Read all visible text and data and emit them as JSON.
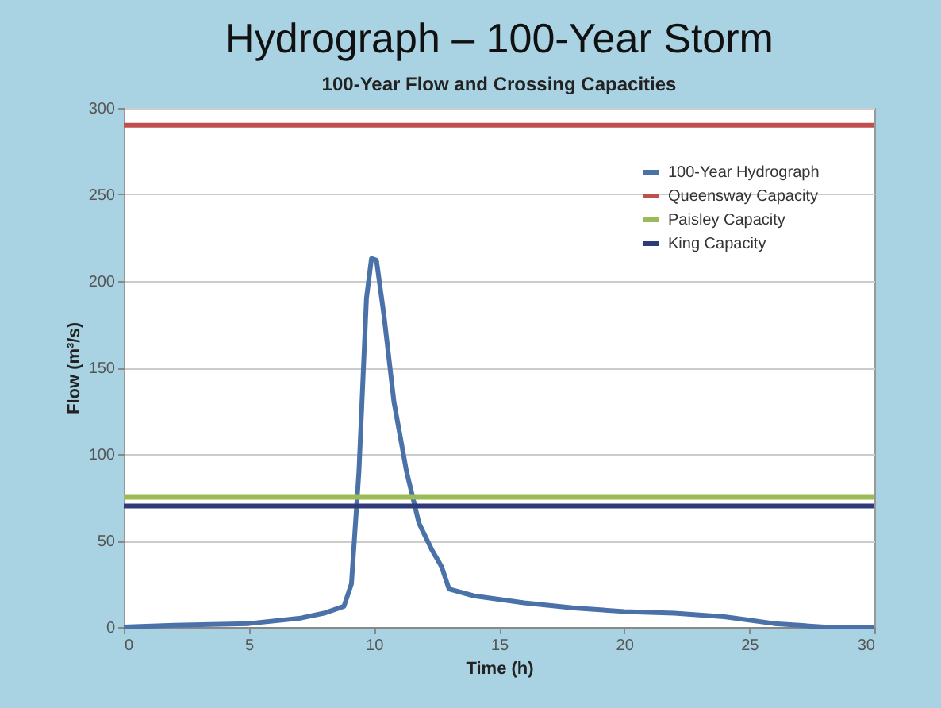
{
  "chart_data": {
    "type": "line",
    "title": "Hydrograph – 100-Year Storm",
    "subtitle": "100-Year Flow and Crossing Capacities",
    "xlabel": "Time (h)",
    "ylabel": "Flow (m³/s)",
    "xlim": [
      0,
      30
    ],
    "xticks": [
      0,
      5,
      10,
      15,
      20,
      25,
      30
    ],
    "ylim": [
      0,
      300
    ],
    "yticks": [
      0,
      50,
      100,
      150,
      200,
      250,
      300
    ],
    "grid": "y",
    "legend": "top right",
    "marker": "none",
    "line_style": "solid",
    "series": [
      {
        "name": "100-Year Hydrograph",
        "color": "#4a72a8",
        "x": [
          0,
          2,
          5,
          7,
          8,
          8.8,
          9.1,
          9.4,
          9.7,
          9.9,
          10.1,
          10.4,
          10.8,
          11.3,
          11.8,
          12.3,
          12.7,
          13,
          14,
          16,
          18,
          20,
          22,
          24,
          25,
          26,
          27,
          28,
          30
        ],
        "values": [
          0,
          1,
          2,
          5,
          8,
          12,
          25,
          90,
          190,
          213,
          212,
          180,
          130,
          90,
          60,
          45,
          35,
          22,
          18,
          14,
          11,
          9,
          8,
          6,
          4,
          2,
          1,
          0,
          0
        ]
      },
      {
        "name": "Queensway Capacity",
        "color": "#c0504d",
        "x": [
          0,
          30
        ],
        "values": [
          290,
          290
        ]
      },
      {
        "name": "Paisley Capacity",
        "color": "#9bbb59",
        "x": [
          0,
          30
        ],
        "values": [
          75,
          75
        ]
      },
      {
        "name": "King Capacity",
        "color": "#2e3a7a",
        "x": [
          0,
          30
        ],
        "values": [
          70,
          70
        ]
      }
    ]
  }
}
